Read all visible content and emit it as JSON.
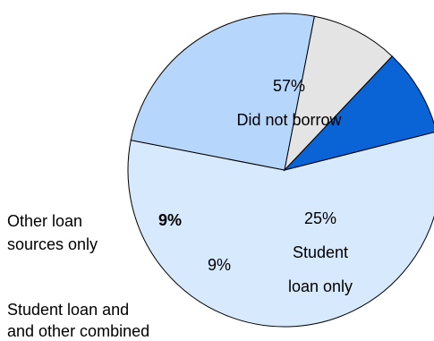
{
  "chart_data": {
    "type": "pie",
    "slices": [
      {
        "key": "did_not_borrow",
        "value": 57,
        "label_value": "57%",
        "label_text": [
          "Did not borrow"
        ],
        "color": "#d6e9fd",
        "text_color": "#000000",
        "bold": false
      },
      {
        "key": "student_loan_only",
        "value": 25,
        "label_value": "25%",
        "label_text": [
          "Student",
          "loan only"
        ],
        "color": "#b6d6fb",
        "text_color": "#000000",
        "bold": false
      },
      {
        "key": "student_and_other",
        "value": 9,
        "label_value": "9%",
        "label_text": [],
        "external_label": [
          "Student loan and",
          "and other combined"
        ],
        "color": "#e4e4e4",
        "text_color": "#000000",
        "bold": false
      },
      {
        "key": "other_only",
        "value": 9,
        "label_value": "9%",
        "label_text": [],
        "external_label": [
          "Other loan",
          "sources only"
        ],
        "color": "#0a64d6",
        "text_color": "#ffffff",
        "bold": true
      }
    ]
  }
}
